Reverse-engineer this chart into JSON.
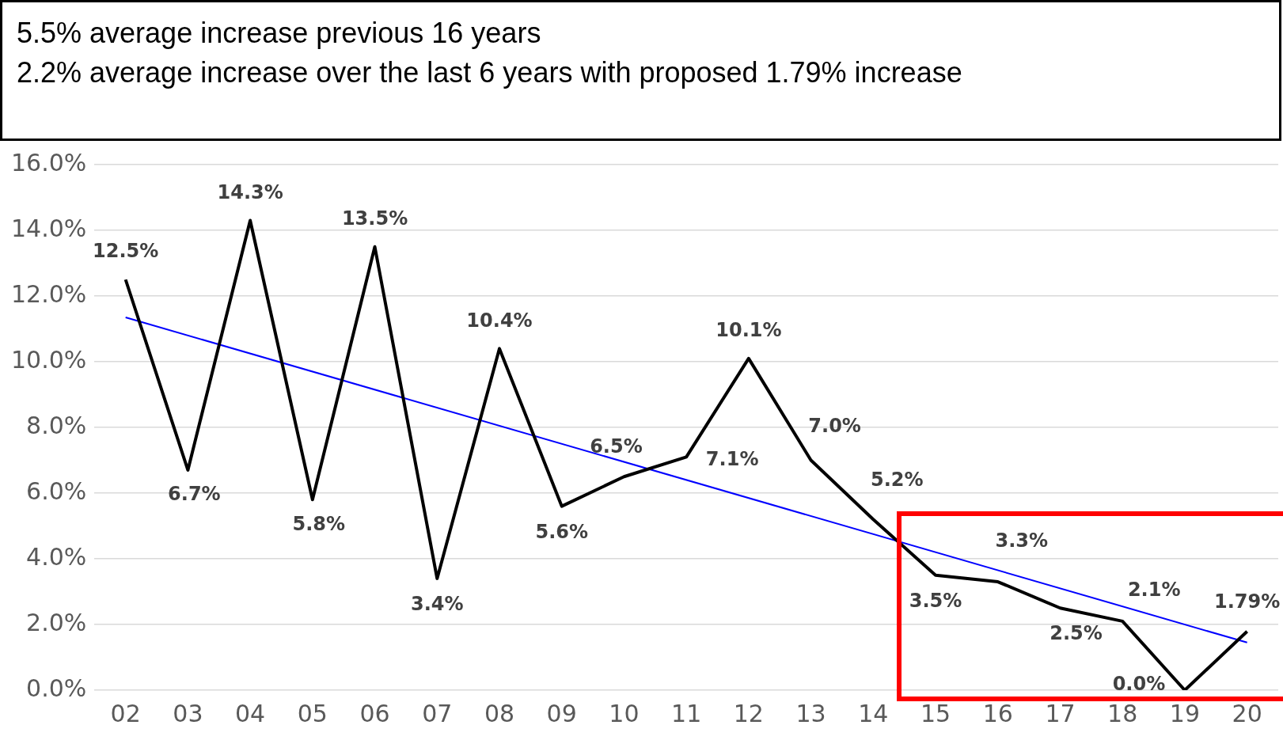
{
  "chart_data": {
    "type": "line",
    "title": "5.5% average increase previous 16 years",
    "subtitle": "2.2% average increase over the last 6 years with proposed 1.79% increase",
    "categories": [
      "02",
      "03",
      "04",
      "05",
      "06",
      "07",
      "08",
      "09",
      "10",
      "11",
      "12",
      "13",
      "14",
      "15",
      "16",
      "17",
      "18",
      "19",
      "20"
    ],
    "series": [
      {
        "name": null,
        "color": "#000000",
        "values": [
          12.5,
          6.7,
          14.3,
          5.8,
          13.5,
          3.4,
          10.4,
          5.6,
          6.5,
          7.1,
          10.1,
          7.0,
          5.2,
          3.5,
          3.3,
          2.5,
          2.1,
          0.0,
          1.79
        ],
        "value_labels": [
          "12.5%",
          "6.7%",
          "14.3%",
          "5.8%",
          "13.5%",
          "3.4%",
          "10.4%",
          "5.6%",
          "6.5%",
          "7.1%",
          "10.1%",
          "7.0%",
          "5.2%",
          "3.5%",
          "3.3%",
          "2.5%",
          "2.1%",
          "0.0%",
          "1.79%"
        ]
      },
      {
        "type": "line",
        "color": "#0000ff",
        "values": [
          11.35,
          null,
          null,
          null,
          null,
          null,
          null,
          null,
          null,
          null,
          null,
          null,
          null,
          null,
          null,
          null,
          null,
          null,
          1.45
        ]
      }
    ],
    "ylim": [
      0,
      16
    ],
    "yticks": [
      {
        "value": 0,
        "label": "0.0%"
      },
      {
        "value": 2,
        "label": "2.0%"
      },
      {
        "value": 4,
        "label": "4.0%"
      },
      {
        "value": 6,
        "label": "6.0%"
      },
      {
        "value": 8,
        "label": "8.0%"
      },
      {
        "value": 10,
        "label": "10.0%"
      },
      {
        "value": 12,
        "label": "12.0%"
      },
      {
        "value": 14,
        "label": "14.0%"
      },
      {
        "value": 16,
        "label": "16.0%"
      }
    ],
    "grid": "y",
    "legend": false,
    "marker": "none"
  }
}
